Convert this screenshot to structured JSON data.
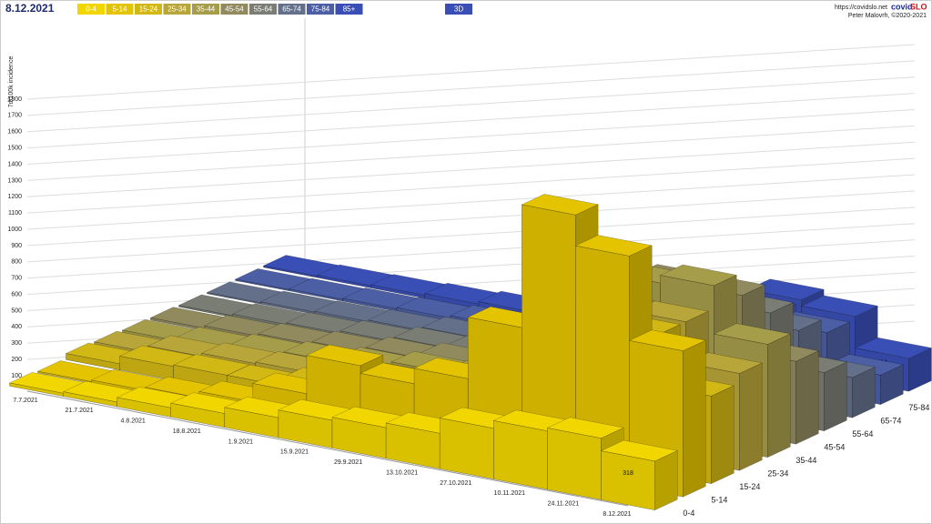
{
  "header": {
    "date": "8.12.2021",
    "mode_button": "3D",
    "site": "https://covidslo.net",
    "brand_a": "covid",
    "brand_b": "SLO",
    "author": "Peter Malovrh, ©2020-2021"
  },
  "chart_data": {
    "type": "bar3d",
    "y_label": "7d/100k incidence",
    "x": [
      "7.7.2021",
      "21.7.2021",
      "4.8.2021",
      "18.8.2021",
      "1.9.2021",
      "15.9.2021",
      "29.9.2021",
      "13.10.2021",
      "27.10.2021",
      "10.11.2021",
      "24.11.2021",
      "8.12.2021"
    ],
    "ylim": [
      0,
      1800
    ],
    "yticks": [
      100,
      200,
      300,
      400,
      500,
      600,
      700,
      800,
      900,
      1000,
      1100,
      1200,
      1300,
      1400,
      1500,
      1600,
      1700,
      1800
    ],
    "grid": true,
    "series": [
      {
        "name": "0-4",
        "color": "#f2d600",
        "values": [
          20,
          30,
          60,
          90,
          130,
          180,
          200,
          230,
          330,
          380,
          400,
          318
        ]
      },
      {
        "name": "5-14",
        "color": "#e4c400",
        "values": [
          10,
          20,
          40,
          80,
          200,
          450,
          400,
          500,
          900,
          1700,
          1500,
          950
        ]
      },
      {
        "name": "15-24",
        "color": "#d2b814",
        "values": [
          40,
          90,
          100,
          100,
          150,
          180,
          170,
          250,
          500,
          900,
          900,
          570
        ]
      },
      {
        "name": "25-34",
        "color": "#b9a63a",
        "values": [
          30,
          70,
          90,
          100,
          130,
          160,
          170,
          260,
          500,
          900,
          900,
          631
        ]
      },
      {
        "name": "35-44",
        "color": "#a69d4a",
        "values": [
          20,
          40,
          60,
          80,
          110,
          150,
          160,
          250,
          550,
          1000,
          1050,
          735
        ]
      },
      {
        "name": "45-54",
        "color": "#908a5e",
        "values": [
          15,
          30,
          45,
          60,
          90,
          120,
          130,
          220,
          500,
          900,
          900,
          538
        ]
      },
      {
        "name": "55-64",
        "color": "#7a7d74",
        "values": [
          10,
          20,
          30,
          45,
          70,
          90,
          100,
          180,
          400,
          700,
          700,
          379
        ]
      },
      {
        "name": "65-74",
        "color": "#64708a",
        "values": [
          8,
          15,
          20,
          30,
          50,
          70,
          80,
          150,
          330,
          550,
          500,
          261
        ]
      },
      {
        "name": "75-84",
        "color": "#4c5ea4",
        "values": [
          8,
          12,
          18,
          25,
          40,
          60,
          70,
          130,
          300,
          450,
          400,
          191
        ]
      },
      {
        "name": "85+",
        "color": "#3a4fb6",
        "values": [
          10,
          15,
          20,
          30,
          45,
          70,
          80,
          140,
          320,
          460,
          420,
          214
        ]
      }
    ]
  }
}
